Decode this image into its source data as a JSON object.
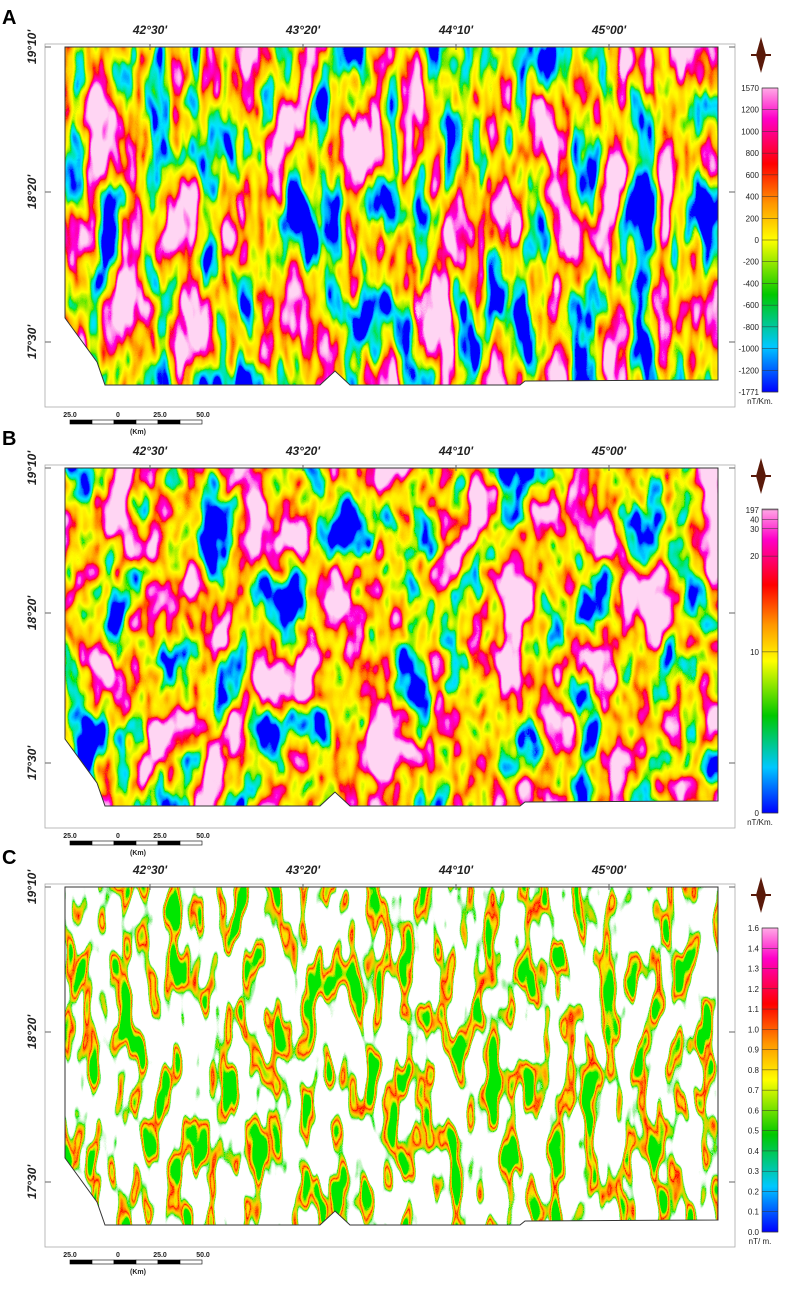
{
  "panels": [
    {
      "label": "A",
      "longitudes": [
        "42°30'",
        "43°20'",
        "44°10'",
        "45°00'"
      ],
      "latitudes": [
        "19°10'",
        "18°20'",
        "17°30'"
      ],
      "colorbar": {
        "ticks": [
          "1570",
          "1200",
          "1000",
          "800",
          "600",
          "400",
          "200",
          "0",
          "-200",
          "-400",
          "-600",
          "-800",
          "-1000",
          "-1200",
          "-1771"
        ],
        "unit": "nT/Km."
      },
      "scale_bar": {
        "ticks": [
          "25.0",
          "0",
          "25.0",
          "50.0"
        ],
        "unit": "(Km)"
      }
    },
    {
      "label": "B",
      "longitudes": [
        "42°30'",
        "43°20'",
        "44°10'",
        "45°00'"
      ],
      "latitudes": [
        "19°10'",
        "18°20'",
        "17°30'"
      ],
      "colorbar": {
        "ticks": [
          "197",
          "40",
          "30",
          "20",
          "10",
          "0"
        ],
        "unit": "nT/Km."
      },
      "scale_bar": {
        "ticks": [
          "25.0",
          "0",
          "25.0",
          "50.0"
        ],
        "unit": "(Km)"
      }
    },
    {
      "label": "C",
      "longitudes": [
        "42°30'",
        "43°20'",
        "44°10'",
        "45°00'"
      ],
      "latitudes": [
        "19°10'",
        "18°20'",
        "17°30'"
      ],
      "colorbar": {
        "ticks": [
          "1.6",
          "1.4",
          "1.3",
          "1.2",
          "1.1",
          "1.0",
          "0.9",
          "0.8",
          "0.7",
          "0.6",
          "0.5",
          "0.4",
          "0.3",
          "0.2",
          "0.1",
          "0.0"
        ],
        "unit": "nT/ m."
      },
      "scale_bar": {
        "ticks": [
          "25.0",
          "0",
          "25.0",
          "50.0"
        ],
        "unit": "(Km)"
      }
    }
  ]
}
